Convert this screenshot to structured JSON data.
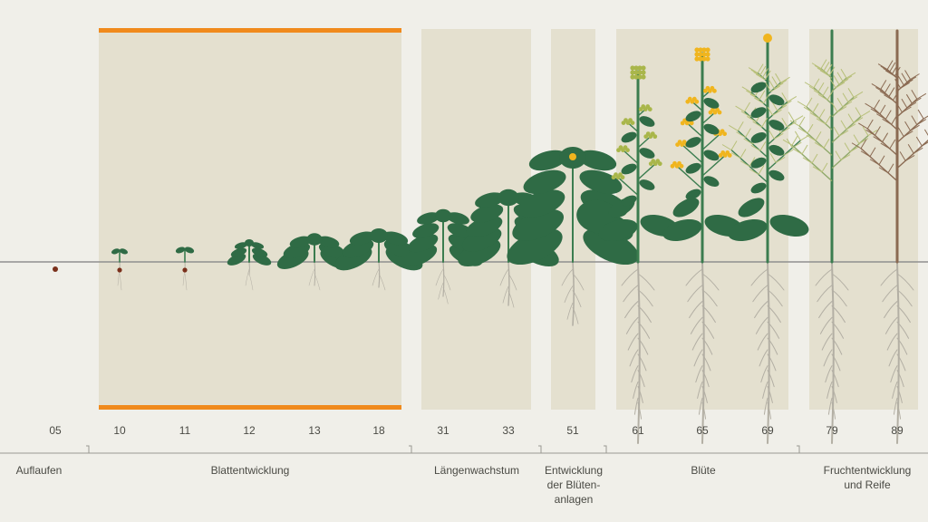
{
  "diagram": {
    "colors": {
      "background": "#f0efe9",
      "panel": "#e4e0cf",
      "accent_bar": "#f08a1c",
      "ground_line": "#8f8f8f",
      "leaf_green": "#2f6b45",
      "stem_green": "#3b7d4f",
      "flower_yellow": "#f0b51e",
      "bud_olive": "#a9b64a",
      "ripe_olive": "#b8c07a",
      "mature_brown": "#8a6a52",
      "root": "#b3afa4",
      "seed": "#7a2f1a"
    },
    "growth_codes": [
      "05",
      "10",
      "11",
      "12",
      "13",
      "18",
      "31",
      "33",
      "51",
      "61",
      "65",
      "69",
      "79",
      "89"
    ],
    "stages": [
      {
        "name": "Auflaufen"
      },
      {
        "name": "Blattentwicklung"
      },
      {
        "name": "Längenwachstum"
      },
      {
        "name": "Entwicklung der Blüten-anlagen",
        "lines": [
          "Entwicklung",
          "der Blüten-",
          "anlagen"
        ]
      },
      {
        "name": "Blüte"
      },
      {
        "name": "Fruchtentwicklung und Reife",
        "lines": [
          "Fruchtentwicklung",
          "und Reife"
        ]
      }
    ]
  }
}
